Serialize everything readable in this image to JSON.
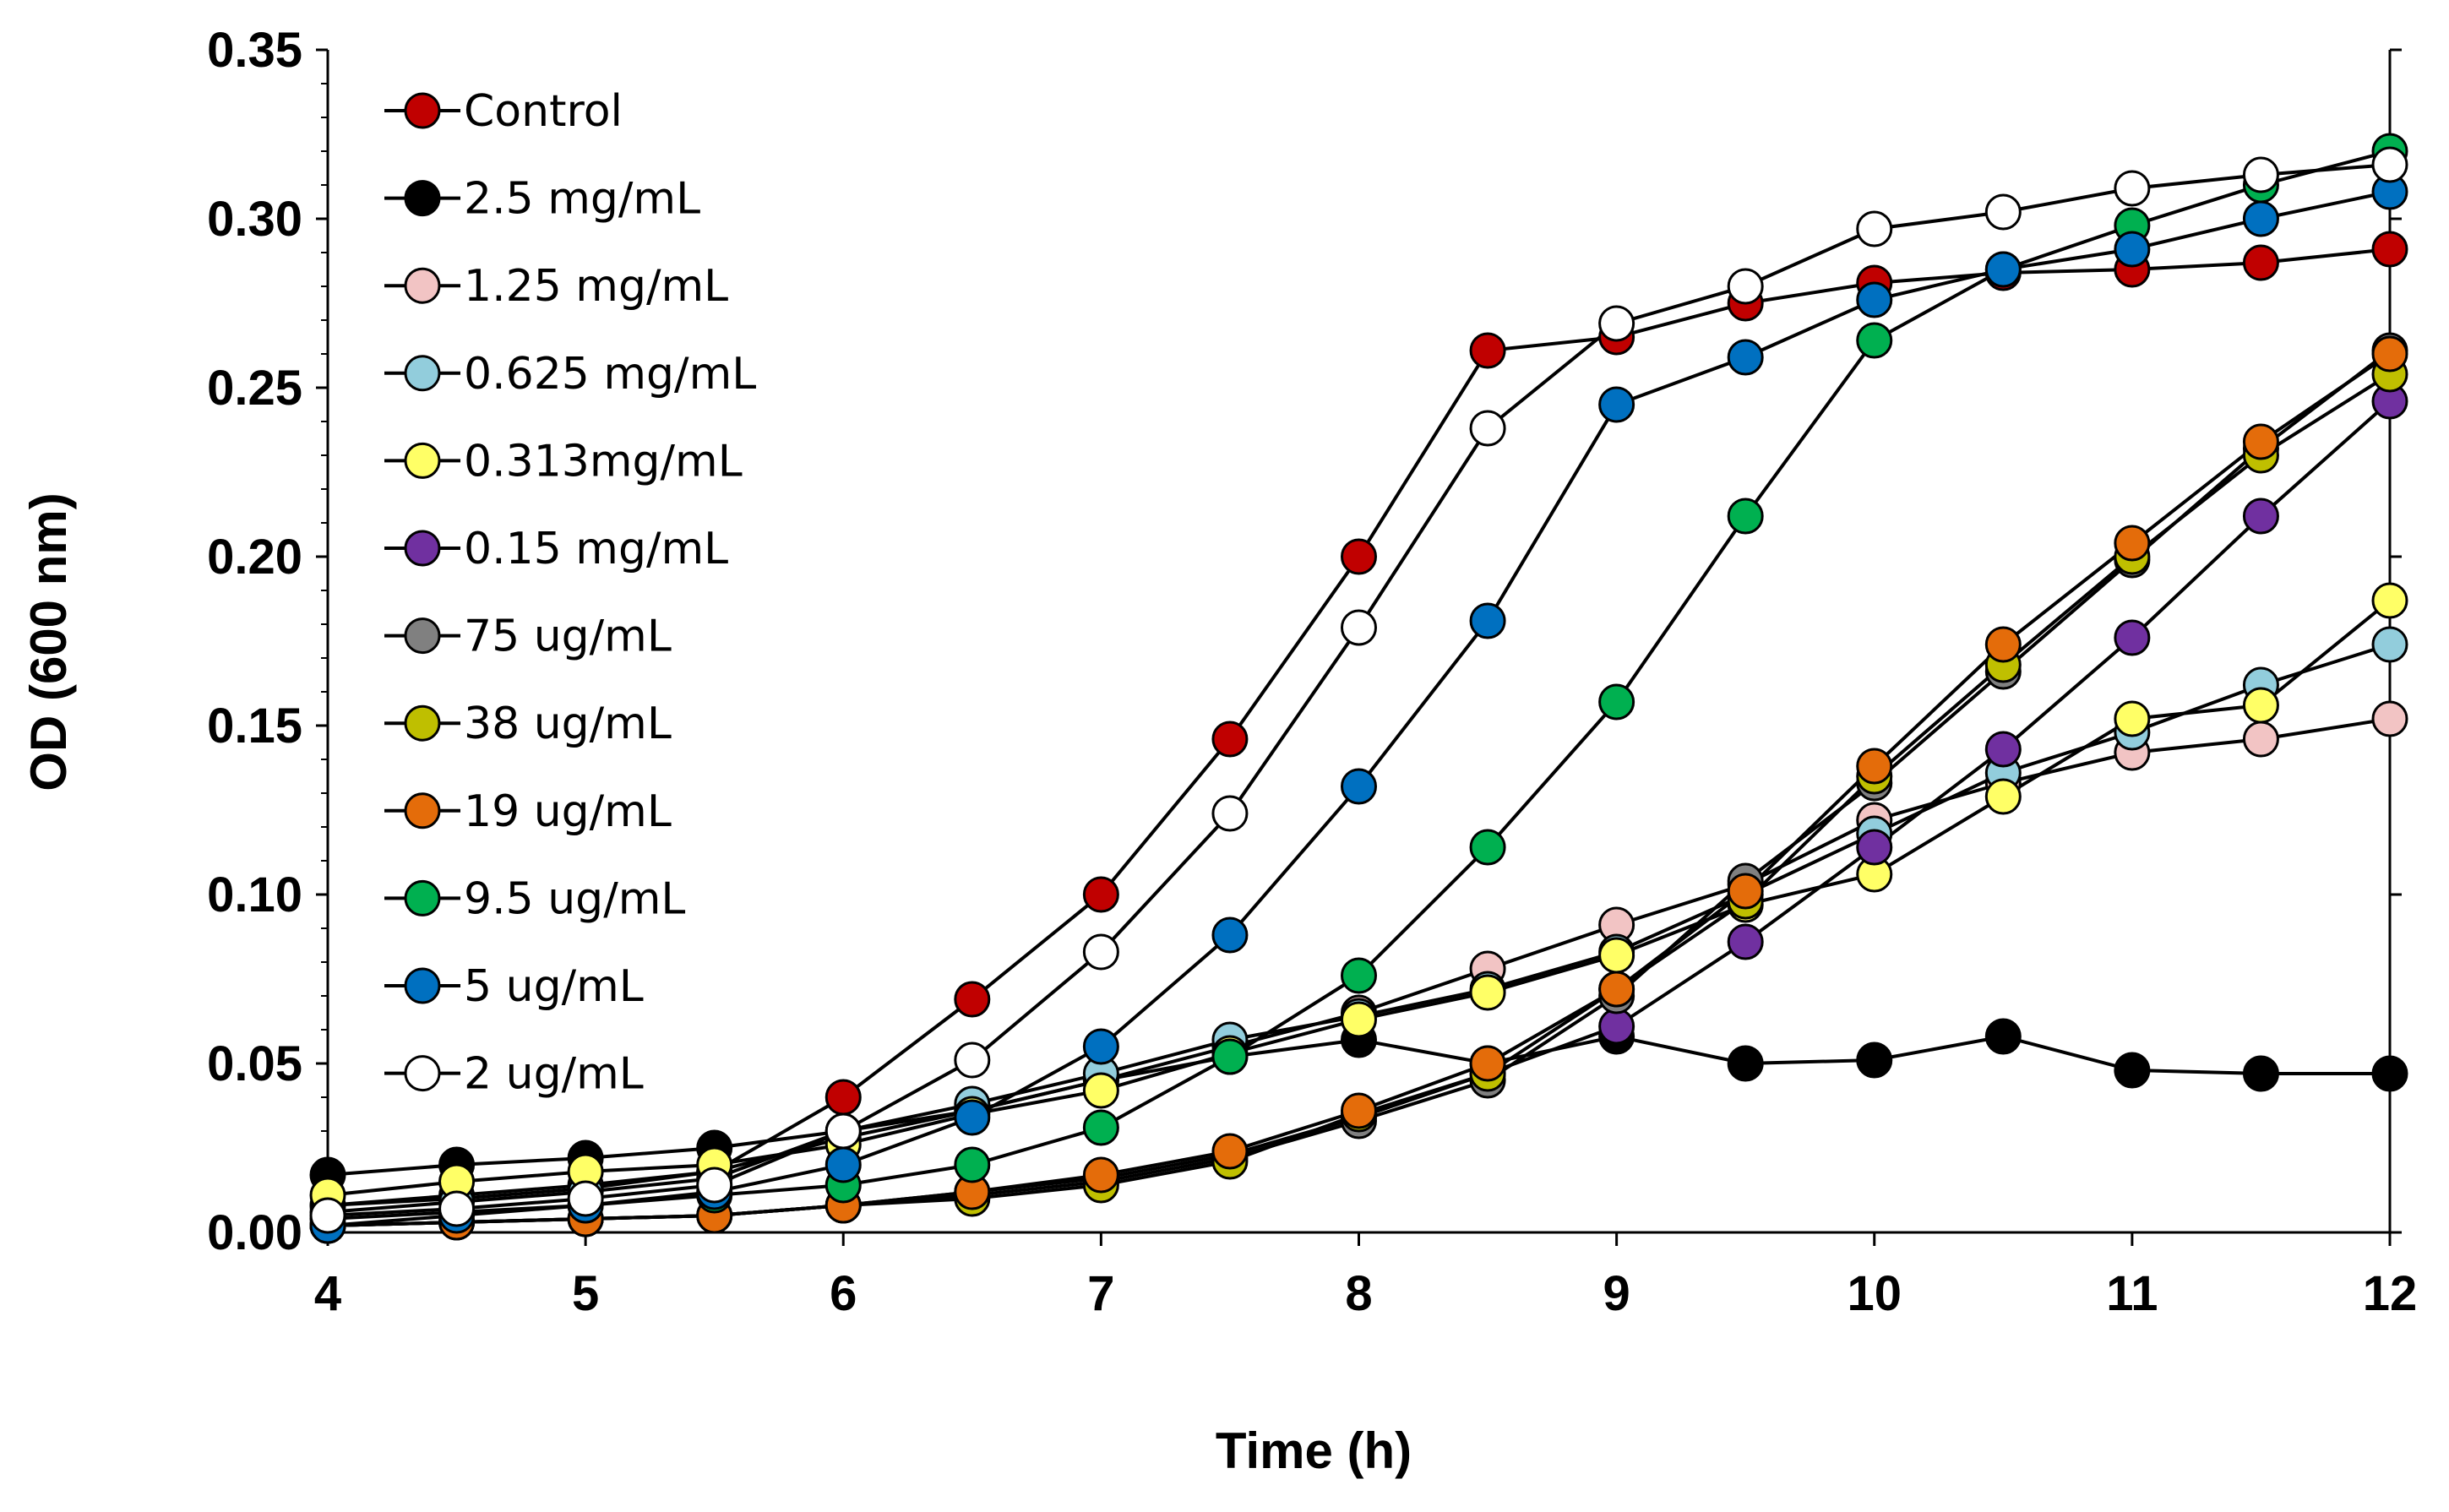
{
  "chart_data": {
    "type": "line",
    "title": "",
    "xlabel": "Time (h)",
    "ylabel": "OD  (600 nm)",
    "xlim": [
      4,
      12
    ],
    "ylim": [
      0,
      0.35
    ],
    "xticks": [
      "4",
      "5",
      "6",
      "7",
      "8",
      "9",
      "10",
      "11",
      "12"
    ],
    "yticks": [
      "0.00",
      "0.05",
      "0.10",
      "0.15",
      "0.20",
      "0.25",
      "0.30",
      "0.35"
    ],
    "legend_position": "top-left",
    "x": [
      4,
      4.5,
      5,
      5.5,
      6,
      6.5,
      7,
      7.5,
      8,
      8.5,
      9,
      9.5,
      10,
      10.5,
      11,
      11.5,
      12
    ],
    "series": [
      {
        "name": "Control",
        "color": "#C00000",
        "values": [
          0.008,
          0.01,
          0.013,
          0.018,
          0.04,
          0.069,
          0.1,
          0.146,
          0.2,
          0.261,
          0.265,
          0.275,
          0.281,
          0.284,
          0.285,
          0.287,
          0.291
        ]
      },
      {
        "name": "2.5 mg/mL",
        "color": "#000000",
        "values": [
          0.017,
          0.02,
          0.022,
          0.025,
          0.03,
          0.036,
          0.045,
          0.052,
          0.057,
          0.05,
          0.058,
          0.05,
          0.051,
          0.058,
          0.048,
          0.047,
          0.047
        ]
      },
      {
        "name": "1.25 mg/mL",
        "color": "#F2C4C4",
        "values": [
          0.008,
          0.011,
          0.014,
          0.018,
          0.028,
          0.036,
          0.045,
          0.055,
          0.065,
          0.078,
          0.091,
          0.103,
          0.122,
          0.133,
          0.142,
          0.146,
          0.152
        ]
      },
      {
        "name": "0.625 mg/mL",
        "color": "#92CDDC",
        "values": [
          0.006,
          0.009,
          0.012,
          0.016,
          0.03,
          0.038,
          0.047,
          0.057,
          0.064,
          0.072,
          0.083,
          0.1,
          0.118,
          0.136,
          0.148,
          0.162,
          0.174
        ]
      },
      {
        "name": "0.313mg/mL",
        "color": "#FFFF66",
        "values": [
          0.011,
          0.015,
          0.018,
          0.02,
          0.026,
          0.035,
          0.042,
          0.053,
          0.063,
          0.071,
          0.082,
          0.097,
          0.106,
          0.129,
          0.152,
          0.156,
          0.187
        ]
      },
      {
        "name": "0.15 mg/mL",
        "color": "#7030A0",
        "values": [
          0.002,
          0.003,
          0.004,
          0.005,
          0.008,
          0.012,
          0.016,
          0.023,
          0.034,
          0.047,
          0.061,
          0.086,
          0.114,
          0.143,
          0.176,
          0.212,
          0.246
        ]
      },
      {
        "name": "75 ug/mL",
        "color": "#808080",
        "values": [
          0.002,
          0.003,
          0.004,
          0.005,
          0.008,
          0.011,
          0.015,
          0.022,
          0.033,
          0.045,
          0.07,
          0.104,
          0.133,
          0.166,
          0.199,
          0.232,
          0.261
        ]
      },
      {
        "name": "38 ug/mL",
        "color": "#BFBF00",
        "values": [
          0.002,
          0.003,
          0.004,
          0.005,
          0.008,
          0.01,
          0.014,
          0.021,
          0.035,
          0.047,
          0.072,
          0.098,
          0.135,
          0.168,
          0.2,
          0.23,
          0.254
        ]
      },
      {
        "name": "19 ug/mL",
        "color": "#E46C0A",
        "values": [
          0.002,
          0.003,
          0.004,
          0.005,
          0.008,
          0.012,
          0.017,
          0.024,
          0.036,
          0.05,
          0.072,
          0.101,
          0.138,
          0.174,
          0.204,
          0.234,
          0.26
        ]
      },
      {
        "name": "9.5 ug/mL",
        "color": "#00B050",
        "values": [
          0.004,
          0.006,
          0.008,
          0.011,
          0.014,
          0.02,
          0.031,
          0.052,
          0.076,
          0.114,
          0.157,
          0.212,
          0.264,
          0.285,
          0.298,
          0.31,
          0.32
        ]
      },
      {
        "name": "5 ug/mL",
        "color": "#0070C0",
        "values": [
          0.002,
          0.005,
          0.008,
          0.012,
          0.02,
          0.034,
          0.055,
          0.088,
          0.132,
          0.181,
          0.245,
          0.259,
          0.276,
          0.285,
          0.291,
          0.3,
          0.308
        ]
      },
      {
        "name": "2 ug/mL",
        "color": "#FFFFFF",
        "values": [
          0.005,
          0.007,
          0.01,
          0.014,
          0.03,
          0.051,
          0.083,
          0.124,
          0.179,
          0.238,
          0.269,
          0.28,
          0.297,
          0.302,
          0.309,
          0.313,
          0.316
        ]
      }
    ]
  }
}
